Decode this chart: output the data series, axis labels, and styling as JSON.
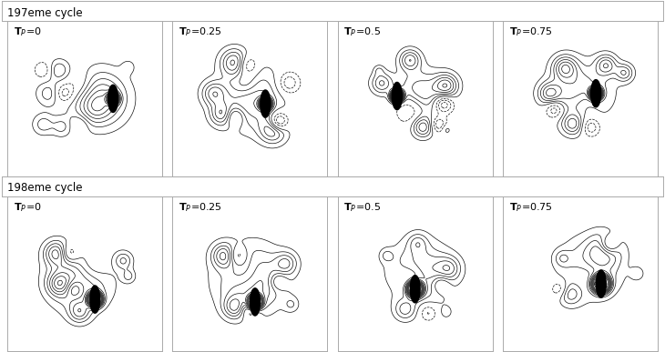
{
  "figure_width": 7.3,
  "figure_height": 3.87,
  "dpi": 100,
  "background_color": "#ffffff",
  "border_color": "#aaaaaa",
  "row_labels": [
    "197eme cycle",
    "198eme cycle"
  ],
  "col_labels_display": [
    "$\\mathbf{T}_P\\!=\\!0$",
    "$\\mathbf{T}_P\\!=\\!0.25$",
    "$\\mathbf{T}_P\\!=\\!0.5$",
    "$\\mathbf{T}_P\\!=\\!0.75$"
  ],
  "nrows": 2,
  "ncols": 4,
  "contour_color": "#111111",
  "contour_linewidth": 0.5
}
